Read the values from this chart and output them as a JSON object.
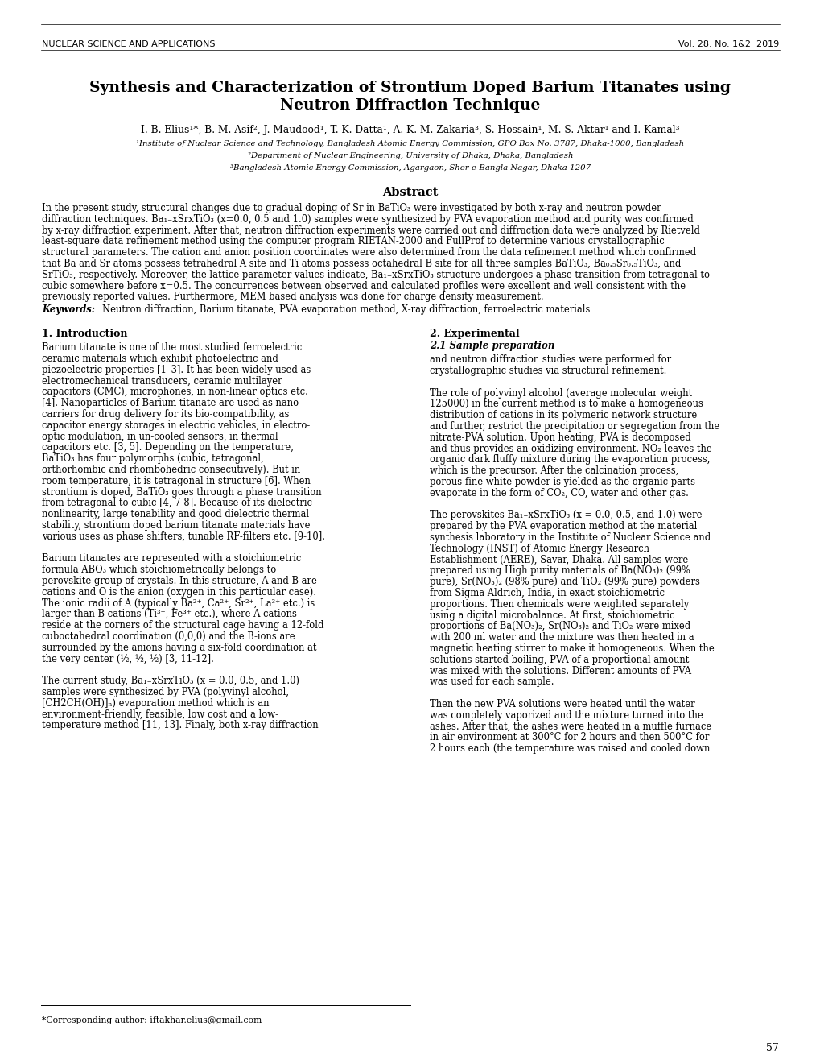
{
  "header_left": "NUCLEAR SCIENCE AND APPLICATIONS",
  "header_right": "Vol. 28. No. 1&2  2019",
  "title_line1": "Synthesis and Characterization of Strontium Doped Barium Titanates using",
  "title_line2": "Neutron Diffraction Technique",
  "authors": "I. B. Elius¹*, B. M. Asif², J. Maudood¹, T. K. Datta¹, A. K. M. Zakaria³, S. Hossain¹, M. S. Aktar¹ and I. Kamal³",
  "affil1": "¹Institute of Nuclear Science and Technology, Bangladesh Atomic Energy Commission, GPO Box No. 3787, Dhaka-1000, Bangladesh",
  "affil2": "²Department of Nuclear Engineering, University of Dhaka, Dhaka, Bangladesh",
  "affil3": "³Bangladesh Atomic Energy Commission, Agargaon, Sher-e-Bangla Nagar, Dhaka-1207",
  "abstract_title": "Abstract",
  "keywords_label": "Keywords:",
  "keywords_text": "Neutron diffraction, Barium titanate, PVA evaporation method, X-ray diffraction, ferroelectric materials",
  "section1_title": "1. Introduction",
  "section2_title": "2. Experimental",
  "section21_title": "2.1 Sample preparation",
  "footnote": "*Corresponding author: iftakhar.elius@gmail.com",
  "page_number": "57",
  "header_fontsize": 8.0,
  "title_fontsize": 13.5,
  "author_fontsize": 8.8,
  "affil_fontsize": 7.3,
  "abstract_title_fontsize": 10.5,
  "body_fontsize": 8.3,
  "section_fontsize": 9.0,
  "bg_color": "#ffffff"
}
